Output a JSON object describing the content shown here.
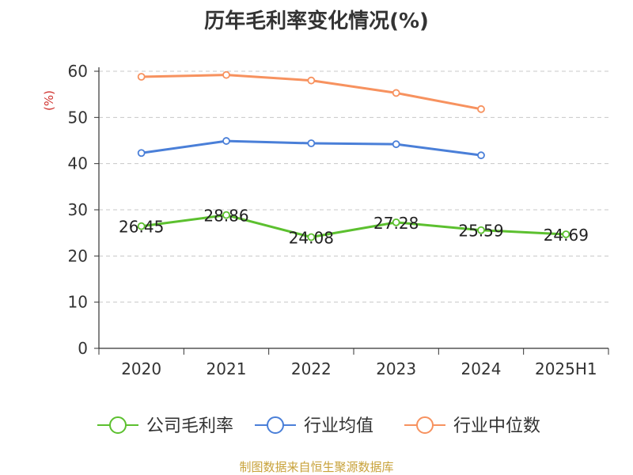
{
  "title": "历年毛利率变化情况(%)",
  "footer": "制图数据来自恒生聚源数据库",
  "chart_data": {
    "type": "line",
    "title": "历年毛利率变化情况(%)",
    "ylabel": "(%)",
    "ylim": [
      0,
      60
    ],
    "yticks": [
      0,
      10,
      20,
      30,
      40,
      50,
      60
    ],
    "categories": [
      "2020",
      "2021",
      "2022",
      "2023",
      "2024",
      "2025H1"
    ],
    "grid": true,
    "legend_position": "bottom",
    "series": [
      {
        "name": "公司毛利率",
        "color": "#5cc02f",
        "values": [
          26.45,
          28.86,
          24.08,
          27.28,
          25.59,
          24.69
        ],
        "labels": [
          "26.45",
          "28.86",
          "24.08",
          "27.28",
          "25.59",
          "24.69"
        ]
      },
      {
        "name": "行业均值",
        "color": "#4a7fd8",
        "values": [
          42.3,
          44.9,
          44.4,
          44.2,
          41.8,
          null
        ]
      },
      {
        "name": "行业中位数",
        "color": "#f7925f",
        "values": [
          58.8,
          59.2,
          58.0,
          55.3,
          51.8,
          null
        ]
      }
    ]
  }
}
